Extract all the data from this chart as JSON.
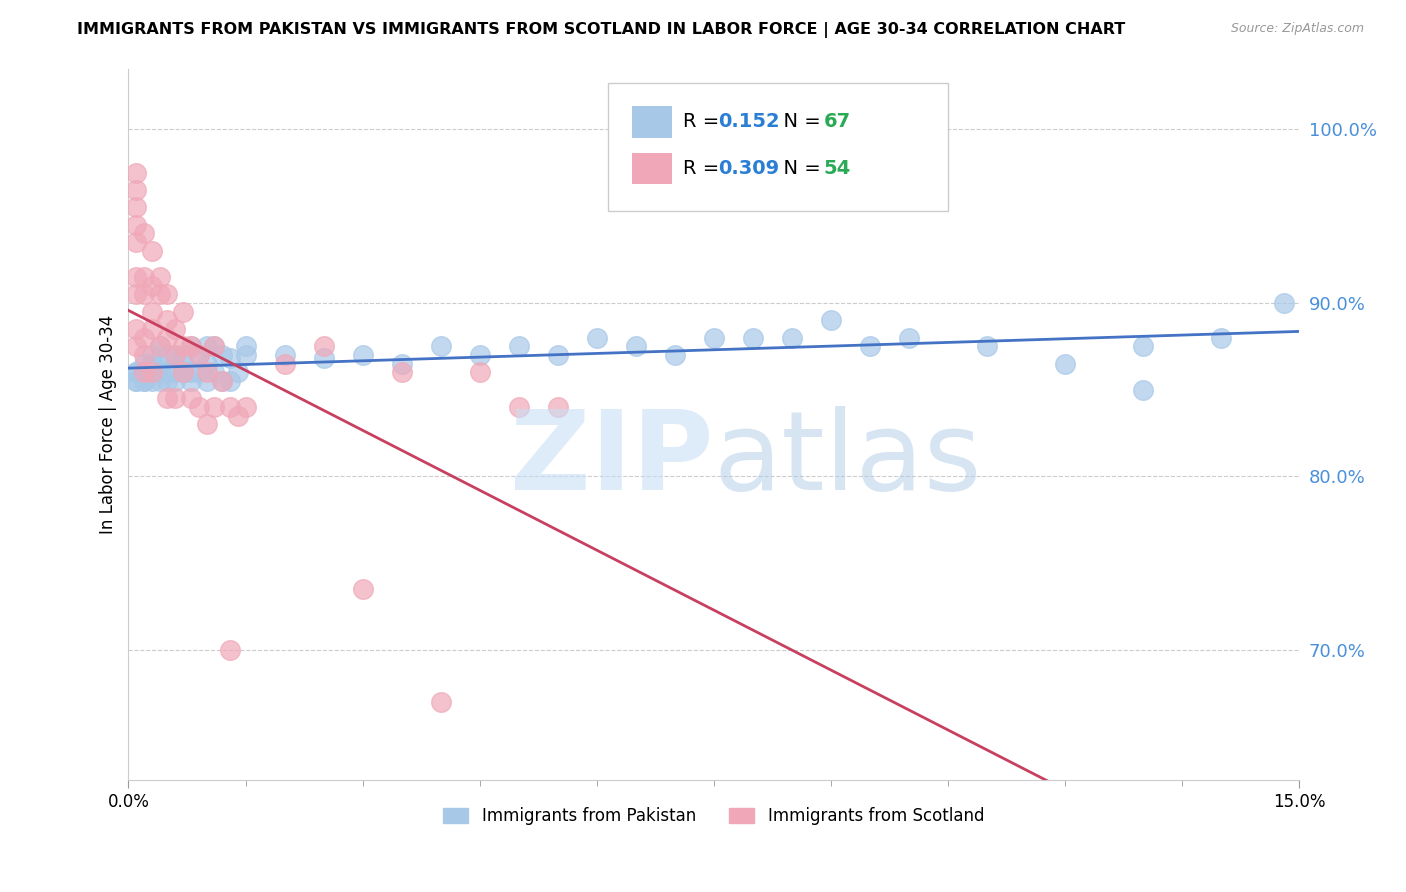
{
  "title": "IMMIGRANTS FROM PAKISTAN VS IMMIGRANTS FROM SCOTLAND IN LABOR FORCE | AGE 30-34 CORRELATION CHART",
  "source": "Source: ZipAtlas.com",
  "ylabel": "In Labor Force | Age 30-34",
  "y_ticks": [
    0.7,
    0.8,
    0.9,
    1.0
  ],
  "y_tick_labels": [
    "70.0%",
    "80.0%",
    "90.0%",
    "100.0%"
  ],
  "xlim": [
    0.0,
    0.15
  ],
  "ylim": [
    0.625,
    1.035
  ],
  "pakistan_R": 0.152,
  "pakistan_N": 67,
  "scotland_R": 0.309,
  "scotland_N": 54,
  "pakistan_color": "#a8c8e8",
  "scotland_color": "#f0a8b8",
  "pakistan_line_color": "#4472c4",
  "scotland_line_color": "#c84060",
  "legend_R_color": "#2a7fd4",
  "legend_N_color": "#2aaa55",
  "pakistan_x": [
    0.001,
    0.001,
    0.001,
    0.001,
    0.002,
    0.002,
    0.002,
    0.002,
    0.002,
    0.003,
    0.003,
    0.003,
    0.003,
    0.003,
    0.004,
    0.004,
    0.004,
    0.004,
    0.005,
    0.005,
    0.005,
    0.006,
    0.006,
    0.006,
    0.007,
    0.007,
    0.007,
    0.008,
    0.008,
    0.008,
    0.009,
    0.009,
    0.01,
    0.01,
    0.01,
    0.011,
    0.011,
    0.012,
    0.012,
    0.013,
    0.013,
    0.014,
    0.015,
    0.015,
    0.02,
    0.025,
    0.03,
    0.035,
    0.04,
    0.045,
    0.05,
    0.055,
    0.06,
    0.065,
    0.07,
    0.075,
    0.08,
    0.085,
    0.09,
    0.095,
    0.1,
    0.11,
    0.12,
    0.13,
    0.14,
    0.148,
    0.13
  ],
  "pakistan_y": [
    0.855,
    0.855,
    0.86,
    0.86,
    0.855,
    0.855,
    0.86,
    0.86,
    0.865,
    0.855,
    0.86,
    0.86,
    0.865,
    0.87,
    0.855,
    0.86,
    0.865,
    0.875,
    0.855,
    0.86,
    0.87,
    0.855,
    0.86,
    0.87,
    0.86,
    0.865,
    0.87,
    0.855,
    0.86,
    0.875,
    0.86,
    0.87,
    0.855,
    0.865,
    0.875,
    0.86,
    0.875,
    0.855,
    0.87,
    0.855,
    0.868,
    0.86,
    0.87,
    0.875,
    0.87,
    0.868,
    0.87,
    0.865,
    0.875,
    0.87,
    0.875,
    0.87,
    0.88,
    0.875,
    0.87,
    0.88,
    0.88,
    0.88,
    0.89,
    0.875,
    0.88,
    0.875,
    0.865,
    0.875,
    0.88,
    0.9,
    0.85
  ],
  "scotland_x": [
    0.001,
    0.001,
    0.001,
    0.001,
    0.001,
    0.001,
    0.001,
    0.001,
    0.001,
    0.002,
    0.002,
    0.002,
    0.002,
    0.002,
    0.002,
    0.003,
    0.003,
    0.003,
    0.003,
    0.003,
    0.004,
    0.004,
    0.004,
    0.005,
    0.005,
    0.005,
    0.005,
    0.006,
    0.006,
    0.006,
    0.007,
    0.007,
    0.007,
    0.008,
    0.008,
    0.009,
    0.009,
    0.01,
    0.01,
    0.011,
    0.011,
    0.012,
    0.013,
    0.013,
    0.014,
    0.015,
    0.02,
    0.025,
    0.03,
    0.035,
    0.04,
    0.045,
    0.05,
    0.055
  ],
  "scotland_y": [
    0.975,
    0.965,
    0.955,
    0.945,
    0.935,
    0.915,
    0.905,
    0.885,
    0.875,
    0.94,
    0.915,
    0.905,
    0.88,
    0.87,
    0.86,
    0.93,
    0.91,
    0.895,
    0.885,
    0.86,
    0.915,
    0.905,
    0.875,
    0.905,
    0.89,
    0.88,
    0.845,
    0.885,
    0.87,
    0.845,
    0.895,
    0.875,
    0.86,
    0.875,
    0.845,
    0.87,
    0.84,
    0.86,
    0.83,
    0.875,
    0.84,
    0.855,
    0.84,
    0.7,
    0.835,
    0.84,
    0.865,
    0.875,
    0.735,
    0.86,
    0.67,
    0.86,
    0.84,
    0.84
  ]
}
